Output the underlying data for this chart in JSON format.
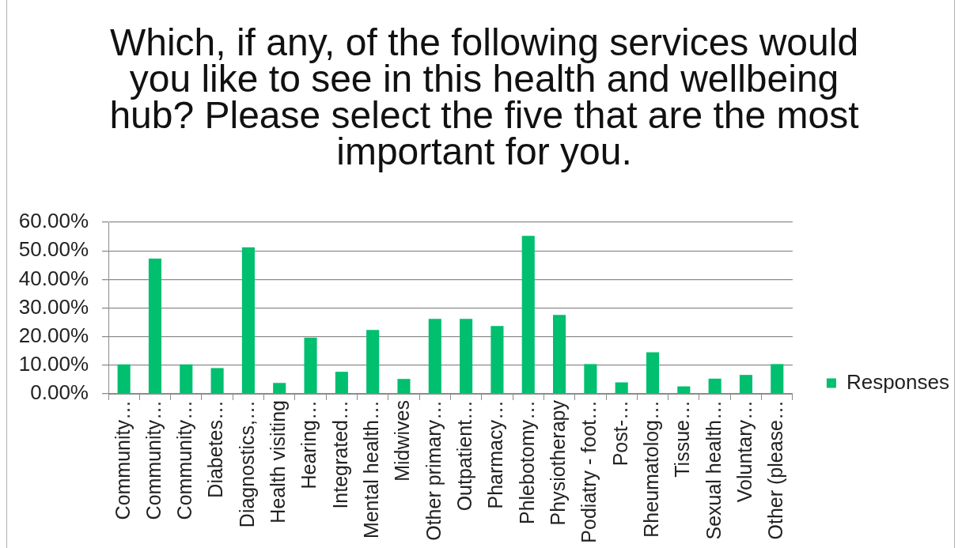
{
  "chart_data": {
    "type": "bar",
    "title": "Which, if any, of the following services would you like to see in this health and wellbeing hub? Please select the five that are the most important for you.",
    "categories": [
      "Community…",
      "Community…",
      "Community…",
      "Diabetes…",
      "Diagnostics,…",
      "Health visiting",
      "Hearing…",
      "Integrated…",
      "Mental health…",
      "Midwives",
      "Other primary…",
      "Outpatient…",
      "Pharmacy…",
      "Phlebotomy…",
      "Physiotherapy",
      "Podiatry - foot…",
      "Post-…",
      "Rheumatolog…",
      "Tissue…",
      "Sexual health…",
      "Voluntary…",
      "Other (please…"
    ],
    "series": [
      {
        "name": "Responses",
        "color": "#00bf6f",
        "values": [
          10.3,
          47.3,
          10.3,
          9.0,
          51.2,
          3.8,
          19.6,
          7.7,
          22.3,
          5.2,
          26.2,
          26.2,
          23.7,
          55.2,
          27.6,
          10.4,
          4.0,
          14.5,
          2.6,
          5.3,
          6.6,
          10.4
        ]
      }
    ],
    "ylim": [
      0,
      60
    ],
    "yticks": [
      {
        "value": 0,
        "label": "0.00%"
      },
      {
        "value": 10,
        "label": "10.00%"
      },
      {
        "value": 20,
        "label": "20.00%"
      },
      {
        "value": 30,
        "label": "30.00%"
      },
      {
        "value": 40,
        "label": "40.00%"
      },
      {
        "value": 50,
        "label": "50.00%"
      },
      {
        "value": 60,
        "label": "60.00%"
      }
    ],
    "grid": "y",
    "legend": "right"
  }
}
